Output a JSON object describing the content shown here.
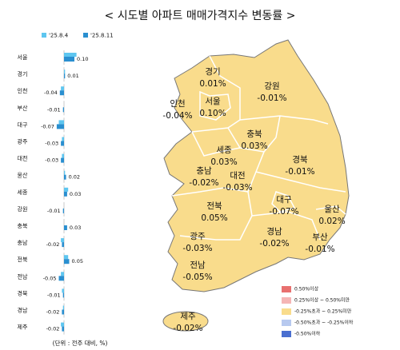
{
  "chart_data": {
    "type": "bar",
    "orientation": "horizontal",
    "title": "< 시도별 아파트 매매가격지수 변동률 >",
    "categories": [
      "서울",
      "경기",
      "인천",
      "부산",
      "대구",
      "광주",
      "대전",
      "울산",
      "세종",
      "강원",
      "충북",
      "충남",
      "전북",
      "전남",
      "경북",
      "경남",
      "제주"
    ],
    "series": [
      {
        "name": "'25.8.4",
        "color": "#5ec6f0",
        "values": [
          0.12,
          0.01,
          -0.03,
          0.0,
          -0.05,
          -0.02,
          -0.02,
          0.01,
          0.04,
          0.0,
          0.0,
          -0.03,
          0.04,
          -0.03,
          -0.02,
          -0.01,
          -0.03
        ]
      },
      {
        "name": "'25.8.11",
        "color": "#2a8fd0",
        "values": [
          0.1,
          0.01,
          -0.04,
          -0.01,
          -0.07,
          -0.03,
          -0.03,
          0.02,
          0.03,
          -0.01,
          0.03,
          -0.02,
          0.05,
          -0.05,
          -0.01,
          -0.02,
          -0.02
        ],
        "value_labels": [
          "0.10",
          "0.01",
          "-0.04",
          "-0.01",
          "-0.07",
          "-0.03",
          "-0.03",
          "0.02",
          "0.03",
          "-0.01",
          "0.03",
          "-0.02",
          "0.05",
          "-0.05",
          "-0.01",
          "-0.02",
          "-0.02"
        ]
      }
    ],
    "annotation": "(단위 : 전주 대비, %)"
  },
  "map": {
    "regions": [
      {
        "name": "경기",
        "label": "0.01%"
      },
      {
        "name": "서울",
        "label": "0.10%"
      },
      {
        "name": "인천",
        "label": "-0.04%"
      },
      {
        "name": "강원",
        "label": "-0.01%"
      },
      {
        "name": "충북",
        "label": "0.03%"
      },
      {
        "name": "세종",
        "label": "0.03%"
      },
      {
        "name": "충남",
        "label": "-0.02%"
      },
      {
        "name": "대전",
        "label": "-0.03%"
      },
      {
        "name": "경북",
        "label": "-0.01%"
      },
      {
        "name": "대구",
        "label": "-0.07%"
      },
      {
        "name": "울산",
        "label": "0.02%"
      },
      {
        "name": "전북",
        "label": "0.05%"
      },
      {
        "name": "경남",
        "label": "-0.02%"
      },
      {
        "name": "부산",
        "label": "-0.01%"
      },
      {
        "name": "광주",
        "label": "-0.03%"
      },
      {
        "name": "전남",
        "label": "-0.05%"
      },
      {
        "name": "제주",
        "label": "-0.02%"
      }
    ],
    "legend": [
      {
        "label": "0.50%이상",
        "color": "#e8706f"
      },
      {
        "label": "0.25%이상 ~ 0.50%미만",
        "color": "#f5b5b5"
      },
      {
        "label": "-0.25%초과 ~ 0.25%미만",
        "color": "#f9dc8c"
      },
      {
        "label": "-0.50%초과 ~ -0.25%이하",
        "color": "#b7c9ef"
      },
      {
        "label": "-0.50%이하",
        "color": "#4a6fd0"
      }
    ]
  }
}
